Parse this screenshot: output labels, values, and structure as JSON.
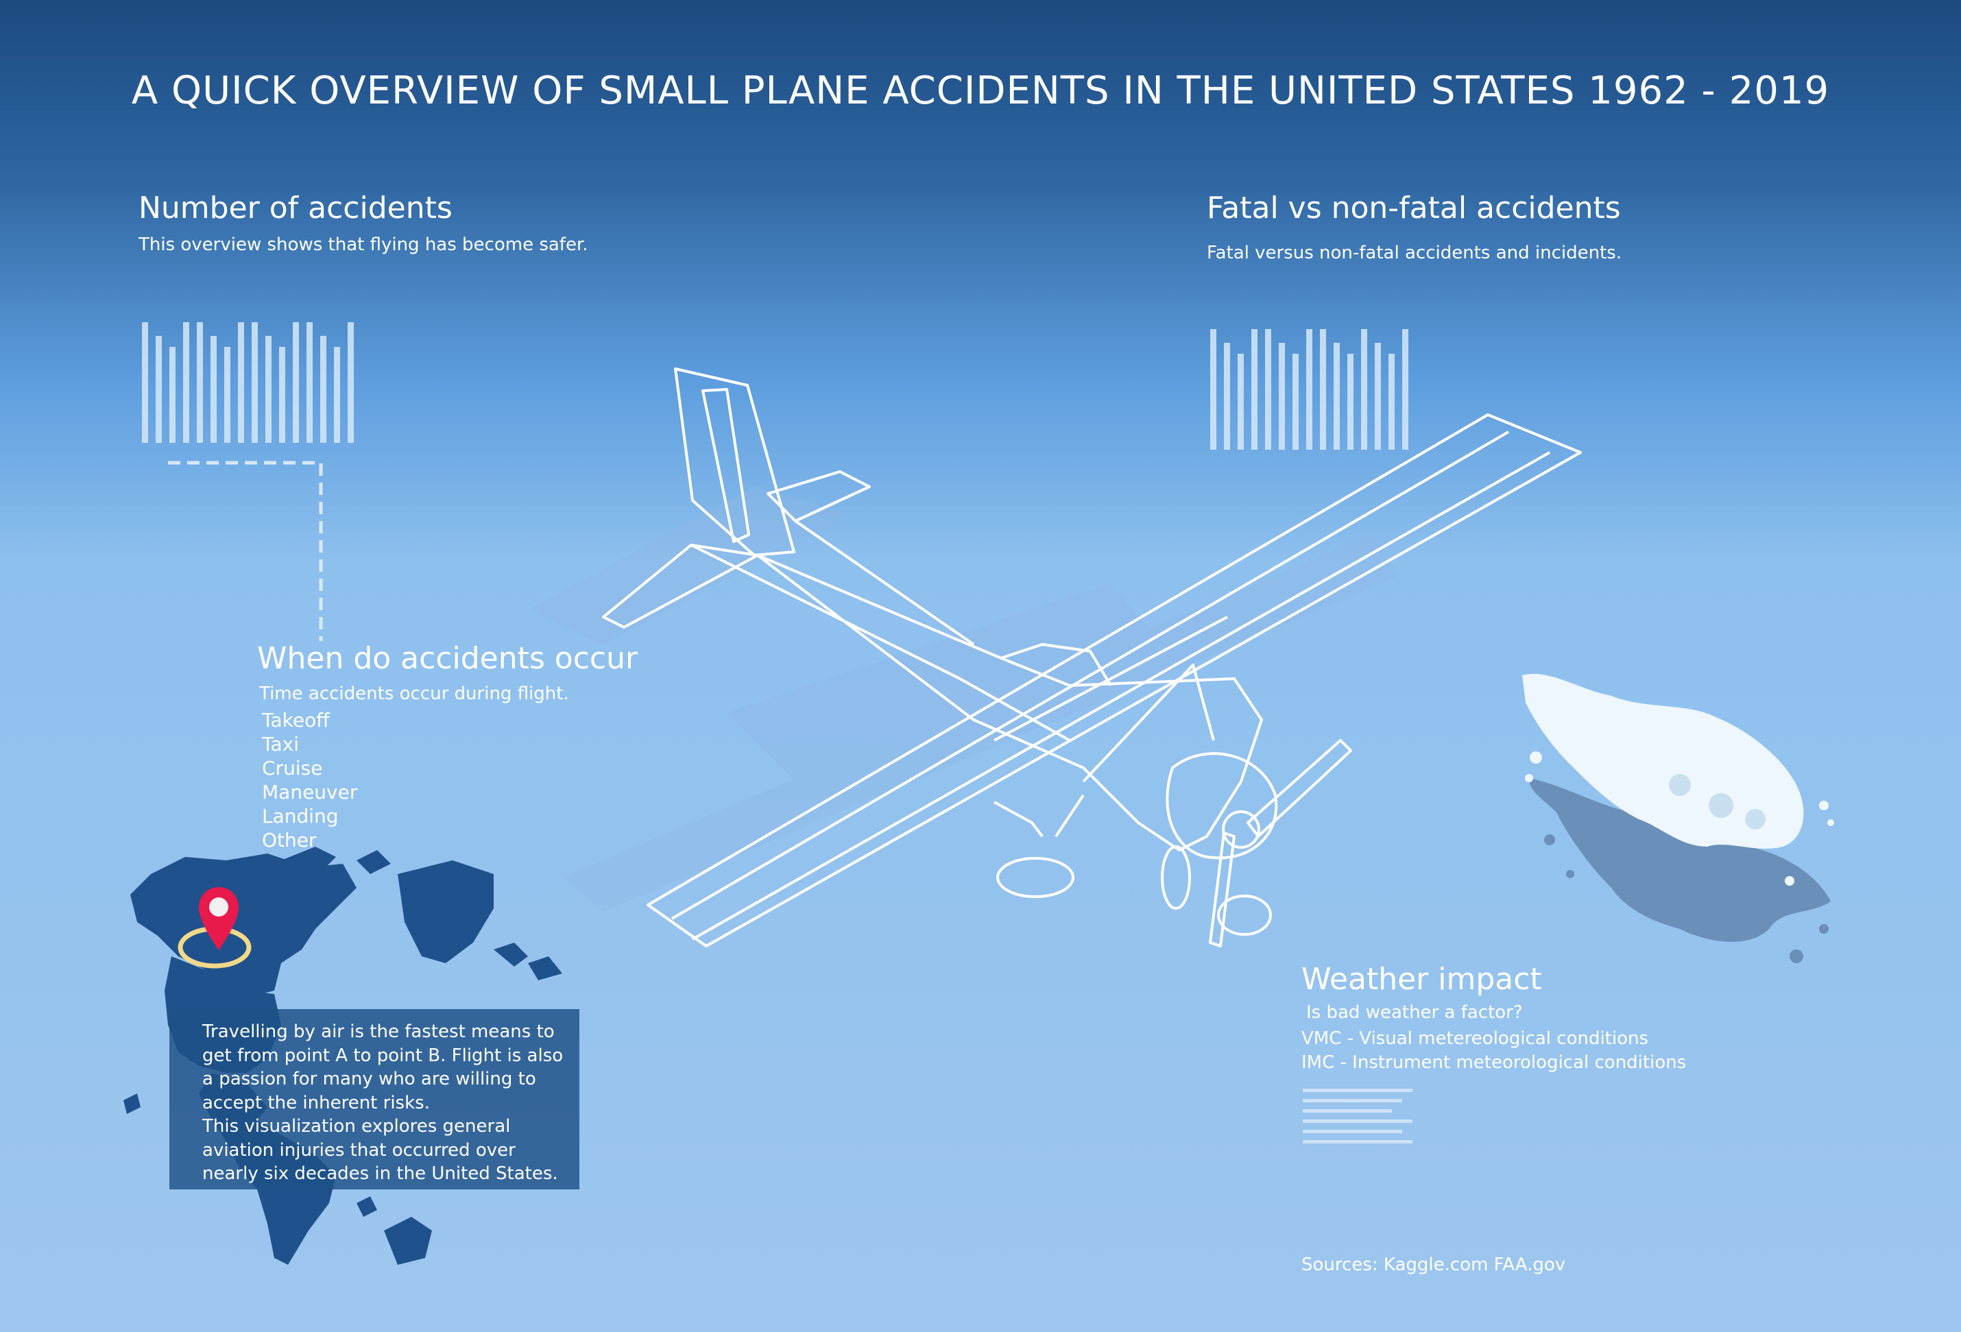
{
  "title": "A QUICK OVERVIEW OF SMALL PLANE ACCIDENTS IN THE UNITED STATES 1962 - 2019",
  "number_of_accidents": {
    "heading": "Number of accidents",
    "subtitle": "This overview shows that flying has become safer."
  },
  "fatal_vs_nonfatal": {
    "heading": "Fatal vs non-fatal accidents",
    "subtitle": "Fatal versus non-fatal accidents and incidents."
  },
  "when_do_accidents_occur": {
    "heading": "When do accidents occur",
    "subtitle": "Time accidents occur during flight.",
    "phases": [
      "Takeoff",
      "Taxi",
      "Cruise",
      "Maneuver",
      "Landing",
      "Other"
    ]
  },
  "story": {
    "paragraph1": "Travelling by air is the fastest means to get from point A to point B. Flight is also a passion for many who are willing to accept the inherent risks.",
    "paragraph2": "This visualization explores general aviation injuries that occurred over nearly six decades in the United States."
  },
  "weather_impact": {
    "heading": "Weather impact",
    "question": "Is bad weather a factor?",
    "vmc": "VMC - Visual metereological conditions",
    "imc": "IMC - Instrument meteorological conditions"
  },
  "sources": "Sources: Kaggle.com FAA.gov",
  "colors": {
    "map": "#1f528c",
    "pin": "#e8194b",
    "pin_ring": "#f2d98a",
    "cloud_top": "#eef7fd",
    "cloud_shadow": "#6a8fb8"
  },
  "icons": [
    "airplane-illustration",
    "map-pin-icon",
    "cloud-illustration",
    "world-map"
  ]
}
